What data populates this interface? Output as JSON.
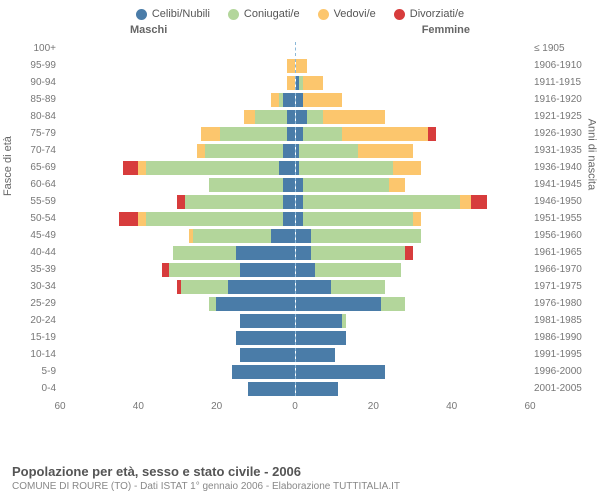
{
  "legend": [
    {
      "label": "Celibi/Nubili",
      "color": "#4a7ca8"
    },
    {
      "label": "Coniugati/e",
      "color": "#b3d69b"
    },
    {
      "label": "Vedovi/e",
      "color": "#fcc66d"
    },
    {
      "label": "Divorziati/e",
      "color": "#d73c3c"
    }
  ],
  "side_labels": {
    "m": "Maschi",
    "f": "Femmine"
  },
  "axis_labels": {
    "left": "Fasce di età",
    "right": "Anni di nascita"
  },
  "xmax": 60,
  "xticks": [
    60,
    40,
    20,
    0,
    20,
    40,
    60
  ],
  "colors": {
    "celibi": "#4a7ca8",
    "coniugati": "#b3d69b",
    "vedovi": "#fcc66d",
    "divorziati": "#d73c3c",
    "grid": "#dddddd",
    "centerline": "#8bb8d8",
    "bg": "#ffffff"
  },
  "rows": [
    {
      "age": "100+",
      "birth": "≤ 1905",
      "m": [
        0,
        0,
        0,
        0
      ],
      "f": [
        0,
        0,
        0,
        0
      ]
    },
    {
      "age": "95-99",
      "birth": "1906-1910",
      "m": [
        0,
        0,
        2,
        0
      ],
      "f": [
        0,
        0,
        3,
        0
      ]
    },
    {
      "age": "90-94",
      "birth": "1911-1915",
      "m": [
        0,
        0,
        2,
        0
      ],
      "f": [
        1,
        1,
        5,
        0
      ]
    },
    {
      "age": "85-89",
      "birth": "1916-1920",
      "m": [
        3,
        1,
        2,
        0
      ],
      "f": [
        2,
        0,
        10,
        0
      ]
    },
    {
      "age": "80-84",
      "birth": "1921-1925",
      "m": [
        2,
        8,
        3,
        0
      ],
      "f": [
        3,
        4,
        16,
        0
      ]
    },
    {
      "age": "75-79",
      "birth": "1926-1930",
      "m": [
        2,
        17,
        5,
        0
      ],
      "f": [
        2,
        10,
        22,
        2
      ]
    },
    {
      "age": "70-74",
      "birth": "1931-1935",
      "m": [
        3,
        20,
        2,
        0
      ],
      "f": [
        1,
        15,
        14,
        0
      ]
    },
    {
      "age": "65-69",
      "birth": "1936-1940",
      "m": [
        4,
        34,
        2,
        4
      ],
      "f": [
        1,
        24,
        7,
        0
      ]
    },
    {
      "age": "60-64",
      "birth": "1941-1945",
      "m": [
        3,
        19,
        0,
        0
      ],
      "f": [
        2,
        22,
        4,
        0
      ]
    },
    {
      "age": "55-59",
      "birth": "1946-1950",
      "m": [
        3,
        25,
        0,
        2
      ],
      "f": [
        2,
        40,
        3,
        4
      ]
    },
    {
      "age": "50-54",
      "birth": "1951-1955",
      "m": [
        3,
        35,
        2,
        5
      ],
      "f": [
        2,
        28,
        2,
        0
      ]
    },
    {
      "age": "45-49",
      "birth": "1956-1960",
      "m": [
        6,
        20,
        1,
        0
      ],
      "f": [
        4,
        28,
        0,
        0
      ]
    },
    {
      "age": "40-44",
      "birth": "1961-1965",
      "m": [
        15,
        16,
        0,
        0
      ],
      "f": [
        4,
        24,
        0,
        2
      ]
    },
    {
      "age": "35-39",
      "birth": "1966-1970",
      "m": [
        14,
        18,
        0,
        2
      ],
      "f": [
        5,
        22,
        0,
        0
      ]
    },
    {
      "age": "30-34",
      "birth": "1971-1975",
      "m": [
        17,
        12,
        0,
        1
      ],
      "f": [
        9,
        14,
        0,
        0
      ]
    },
    {
      "age": "25-29",
      "birth": "1976-1980",
      "m": [
        20,
        2,
        0,
        0
      ],
      "f": [
        22,
        6,
        0,
        0
      ]
    },
    {
      "age": "20-24",
      "birth": "1981-1985",
      "m": [
        14,
        0,
        0,
        0
      ],
      "f": [
        12,
        1,
        0,
        0
      ]
    },
    {
      "age": "15-19",
      "birth": "1986-1990",
      "m": [
        15,
        0,
        0,
        0
      ],
      "f": [
        13,
        0,
        0,
        0
      ]
    },
    {
      "age": "10-14",
      "birth": "1991-1995",
      "m": [
        14,
        0,
        0,
        0
      ],
      "f": [
        10,
        0,
        0,
        0
      ]
    },
    {
      "age": "5-9",
      "birth": "1996-2000",
      "m": [
        16,
        0,
        0,
        0
      ],
      "f": [
        23,
        0,
        0,
        0
      ]
    },
    {
      "age": "0-4",
      "birth": "2001-2005",
      "m": [
        12,
        0,
        0,
        0
      ],
      "f": [
        11,
        0,
        0,
        0
      ]
    }
  ],
  "title": "Popolazione per età, sesso e stato civile - 2006",
  "subtitle": "COMUNE DI ROURE (TO) - Dati ISTAT 1° gennaio 2006 - Elaborazione TUTTITALIA.IT"
}
